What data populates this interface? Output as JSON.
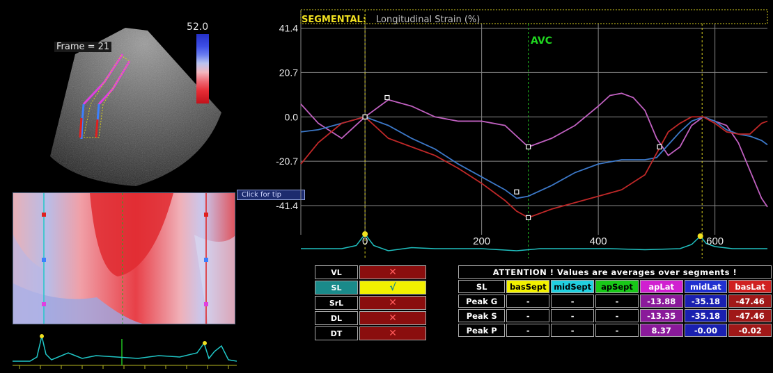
{
  "ultrasound": {
    "frame_label": "Frame = 21",
    "scale_max": "52.0"
  },
  "tip_button": "Click for tip",
  "chart_data": {
    "type": "line",
    "title": "SEGMENTAL:",
    "subtitle": "Longitudinal Strain (%)",
    "annotation": "AVC",
    "xlim": [
      -110,
      690
    ],
    "ylim": [
      -55,
      50
    ],
    "y_ticks": [
      41.4,
      20.7,
      0.0,
      -20.7,
      -41.4
    ],
    "y_tick_labels": [
      "41.4",
      "20.7",
      "0.0",
      "-20.7",
      "-41.4"
    ],
    "x_ticks": [
      0,
      200,
      400,
      600
    ],
    "x_tick_labels": [
      "0",
      "200",
      "400",
      "600"
    ],
    "grid": true,
    "vlines": {
      "avc_x": 280,
      "start_x": 0,
      "end_x": 578
    },
    "series": [
      {
        "color": "#c060c0",
        "x": [
          -110,
          -80,
          -40,
          0,
          40,
          80,
          120,
          160,
          200,
          240,
          280,
          320,
          360,
          400,
          420,
          440,
          460,
          480,
          500,
          520,
          540,
          560,
          580,
          600,
          620,
          640,
          660,
          680,
          690
        ],
        "y": [
          6,
          -3,
          -10,
          0,
          8,
          5,
          0,
          -2,
          -2,
          -4,
          -14,
          -10,
          -4,
          5,
          10,
          11,
          9,
          3,
          -10,
          -18,
          -14,
          -4,
          0,
          -2,
          -4,
          -12,
          -25,
          -38,
          -42
        ]
      },
      {
        "color": "#3c78c8",
        "x": [
          -110,
          -80,
          -40,
          0,
          40,
          80,
          120,
          160,
          200,
          240,
          260,
          280,
          320,
          360,
          400,
          440,
          480,
          500,
          520,
          540,
          560,
          580,
          600,
          620,
          640,
          660,
          680,
          690
        ],
        "y": [
          -7,
          -6,
          -3,
          0,
          -4,
          -10,
          -15,
          -22,
          -28,
          -34,
          -38,
          -37,
          -32,
          -26,
          -22,
          -20,
          -20,
          -19,
          -13,
          -7,
          -2,
          0,
          -2,
          -6,
          -8,
          -9,
          -11,
          -13
        ]
      },
      {
        "color": "#c02828",
        "x": [
          -110,
          -80,
          -40,
          0,
          40,
          80,
          120,
          160,
          200,
          240,
          260,
          280,
          320,
          360,
          400,
          440,
          480,
          520,
          540,
          560,
          580,
          600,
          620,
          640,
          660,
          680,
          690
        ],
        "y": [
          -22,
          -12,
          -3,
          0,
          -10,
          -14,
          -18,
          -24,
          -31,
          -39,
          -44,
          -47,
          -43,
          -40,
          -37,
          -34,
          -27,
          -7,
          -3,
          0,
          0,
          -3,
          -7,
          -8,
          -8,
          -3,
          -2
        ]
      }
    ],
    "markers": [
      {
        "x": 0,
        "y": 0
      },
      {
        "x": 38,
        "y": 9
      },
      {
        "x": 280,
        "y": -14
      },
      {
        "x": 260,
        "y": -35
      },
      {
        "x": 280,
        "y": -47
      },
      {
        "x": 505,
        "y": -14
      }
    ],
    "ecg": {
      "color": "#20c0c0",
      "x": [
        -110,
        -40,
        -15,
        0,
        15,
        40,
        80,
        120,
        200,
        260,
        280,
        300,
        360,
        420,
        480,
        540,
        560,
        575,
        585,
        600,
        630,
        690
      ],
      "y": [
        0,
        0,
        3,
        14,
        3,
        -2,
        1,
        0,
        0,
        -2,
        -1,
        0,
        0,
        0,
        -1,
        0,
        4,
        12,
        5,
        2,
        0,
        0
      ]
    }
  },
  "mode_table": {
    "rows": [
      {
        "label": "VL",
        "state": "✕"
      },
      {
        "label": "SL",
        "state": "√"
      },
      {
        "label": "SrL",
        "state": "✕"
      },
      {
        "label": "DL",
        "state": "✕"
      },
      {
        "label": "DT",
        "state": "✕"
      }
    ]
  },
  "values_table": {
    "attention": "ATTENTION !  Values are averages over segments !",
    "mode": "SL",
    "segments": [
      "basSept",
      "midSept",
      "apSept",
      "apLat",
      "midLat",
      "basLat"
    ],
    "segment_colors": [
      "#f2f000",
      "#20d0e0",
      "#18c818",
      "#d020d0",
      "#2030d0",
      "#d02020"
    ],
    "rows": [
      {
        "label": "Peak G",
        "values": [
          "-",
          "-",
          "-",
          "-13.88",
          "-35.18",
          "-47.46"
        ]
      },
      {
        "label": "Peak S",
        "values": [
          "-",
          "-",
          "-",
          "-13.35",
          "-35.18",
          "-47.46"
        ]
      },
      {
        "label": "Peak P",
        "values": [
          "-",
          "-",
          "-",
          "8.37",
          "-0.00",
          "-0.02"
        ]
      }
    ]
  }
}
